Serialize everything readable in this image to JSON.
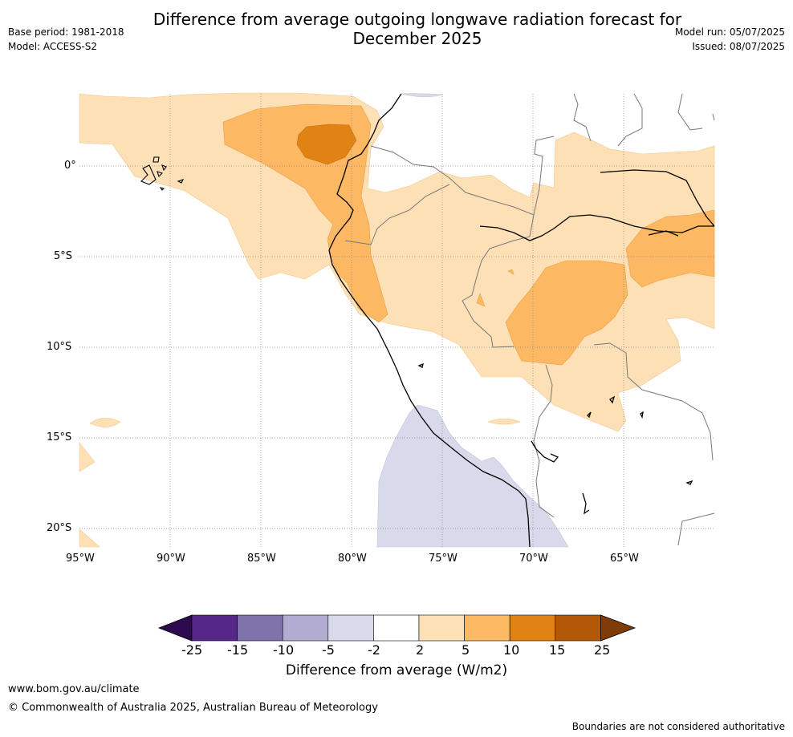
{
  "title_line1": "Difference from average outgoing longwave radiation forecast for",
  "title_line2": "December 2025",
  "base_period": "Base period: 1981-2018",
  "model": "Model: ACCESS-S2",
  "model_run": "Model run: 05/07/2025",
  "issued": "Issued: 08/07/2025",
  "lat_labels": [
    "0°",
    "5°S",
    "10°S",
    "15°S",
    "20°S"
  ],
  "lon_labels": [
    "95°W",
    "90°W",
    "85°W",
    "80°W",
    "75°W",
    "70°W",
    "65°W"
  ],
  "colorbar": {
    "ticks": [
      "-25",
      "-15",
      "-10",
      "-5",
      "-2",
      "2",
      "5",
      "10",
      "15",
      "25"
    ],
    "colors": [
      "#2d0b4e",
      "#542788",
      "#8073ac",
      "#b2abd2",
      "#d8daeb",
      "#ffffff",
      "#fee0b6",
      "#fdb863",
      "#e08214",
      "#b35806",
      "#7f3b08"
    ],
    "label": "Difference from average (W/m2)"
  },
  "footer": {
    "url": "www.bom.gov.au/climate",
    "copyright": "© Commonwealth of Australia 2025, Australian Bureau of Meteorology",
    "disclaimer": "Boundaries are not considered authoritative"
  }
}
